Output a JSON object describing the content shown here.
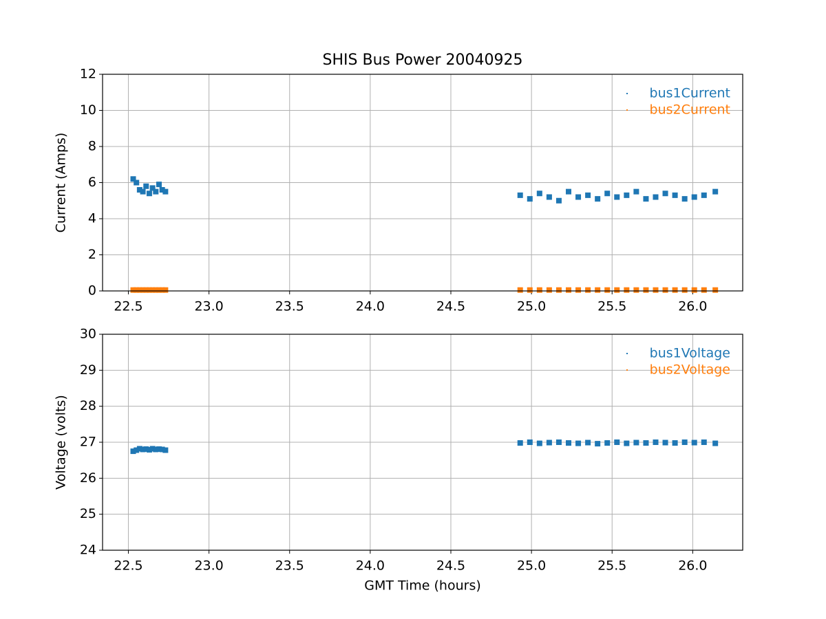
{
  "chart_data": [
    {
      "type": "scatter",
      "title": "SHIS Bus Power 20040925",
      "ylabel": "Current (Amps)",
      "x": [
        22.53,
        22.55,
        22.57,
        22.59,
        22.61,
        22.63,
        22.65,
        22.67,
        22.69,
        22.71,
        22.73,
        24.93,
        24.99,
        25.05,
        25.11,
        25.17,
        25.23,
        25.29,
        25.35,
        25.41,
        25.47,
        25.53,
        25.59,
        25.65,
        25.71,
        25.77,
        25.83,
        25.89,
        25.95,
        26.01,
        26.07,
        26.14
      ],
      "series": [
        {
          "name": "bus1Current",
          "color": "#1f77b4",
          "values": [
            6.2,
            6.0,
            5.6,
            5.5,
            5.8,
            5.4,
            5.7,
            5.5,
            5.9,
            5.6,
            5.5,
            5.3,
            5.1,
            5.4,
            5.2,
            5.0,
            5.5,
            5.2,
            5.3,
            5.1,
            5.4,
            5.2,
            5.3,
            5.5,
            5.1,
            5.2,
            5.4,
            5.3,
            5.1,
            5.2,
            5.3,
            5.5
          ]
        },
        {
          "name": "bus2Current",
          "color": "#ff7f0e",
          "values": [
            0.05,
            0.05,
            0.05,
            0.05,
            0.05,
            0.05,
            0.05,
            0.05,
            0.05,
            0.05,
            0.05,
            0.05,
            0.05,
            0.05,
            0.05,
            0.05,
            0.05,
            0.05,
            0.05,
            0.05,
            0.05,
            0.05,
            0.05,
            0.05,
            0.05,
            0.05,
            0.05,
            0.05,
            0.05,
            0.05,
            0.05,
            0.05
          ]
        }
      ],
      "xlim": [
        22.34,
        26.31
      ],
      "xticks": [
        22.5,
        {
          "value": 23,
          "label": "23.0"
        },
        23.5,
        {
          "value": 24,
          "label": "24.0"
        },
        24.5,
        {
          "value": 25,
          "label": "25.0"
        },
        25.5,
        {
          "value": 26,
          "label": "26.0"
        }
      ],
      "ylim": [
        0,
        12
      ],
      "yticks": [
        0,
        2,
        4,
        6,
        8,
        10,
        12
      ],
      "grid": true,
      "legend": "upper right"
    },
    {
      "type": "scatter",
      "xlabel": "GMT Time (hours)",
      "ylabel": "Voltage (volts)",
      "x": [
        22.53,
        22.55,
        22.57,
        22.59,
        22.61,
        22.63,
        22.65,
        22.67,
        22.69,
        22.71,
        22.73,
        24.93,
        24.99,
        25.05,
        25.11,
        25.17,
        25.23,
        25.29,
        25.35,
        25.41,
        25.47,
        25.53,
        25.59,
        25.65,
        25.71,
        25.77,
        25.83,
        25.89,
        25.95,
        26.01,
        26.07,
        26.14
      ],
      "series": [
        {
          "name": "bus1Voltage",
          "color": "#1f77b4",
          "values": [
            26.75,
            26.78,
            26.82,
            26.8,
            26.81,
            26.79,
            26.82,
            26.8,
            26.81,
            26.8,
            26.78,
            26.98,
            27.0,
            26.97,
            26.99,
            27.0,
            26.98,
            26.97,
            26.99,
            26.96,
            26.98,
            27.0,
            26.97,
            26.99,
            26.98,
            27.0,
            26.99,
            26.98,
            27.0,
            26.99,
            27.0,
            26.97
          ]
        },
        {
          "name": "bus2Voltage",
          "color": "#ff7f0e",
          "values": [
            null,
            null,
            null,
            null,
            null,
            null,
            null,
            null,
            null,
            null,
            null,
            null,
            null,
            null,
            null,
            null,
            null,
            null,
            null,
            null,
            null,
            null,
            null,
            null,
            null,
            null,
            null,
            null,
            null,
            null,
            null,
            null
          ]
        }
      ],
      "xlim": [
        22.34,
        26.31
      ],
      "xticks": [
        22.5,
        {
          "value": 23,
          "label": "23.0"
        },
        23.5,
        {
          "value": 24,
          "label": "24.0"
        },
        24.5,
        {
          "value": 25,
          "label": "25.0"
        },
        25.5,
        {
          "value": 26,
          "label": "26.0"
        }
      ],
      "ylim": [
        24,
        30
      ],
      "yticks": [
        24,
        25,
        26,
        27,
        28,
        29,
        30
      ],
      "grid": true,
      "legend": "upper right"
    }
  ]
}
